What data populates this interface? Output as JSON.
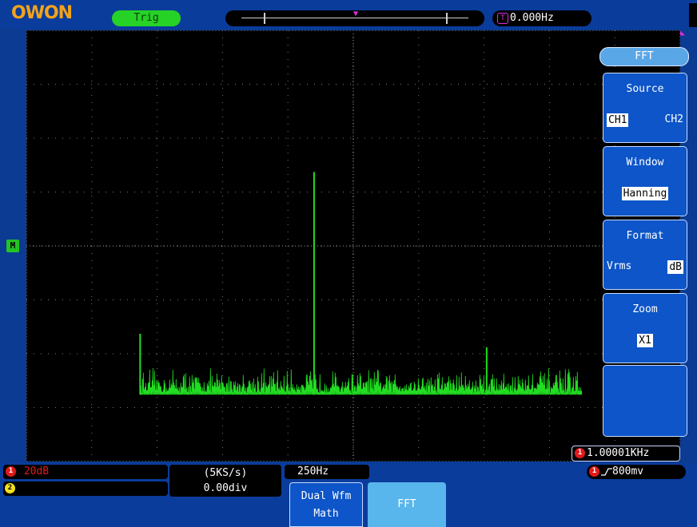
{
  "header": {
    "logo_text": "OWON",
    "trig_label": "Trig",
    "trigger_freq": "0.000Hz"
  },
  "menu": {
    "title": "FFT",
    "items": [
      {
        "label": "Source",
        "options": [
          "CH1",
          "CH2"
        ],
        "selected": "CH1"
      },
      {
        "label": "Window",
        "options": [
          "Hanning"
        ],
        "selected": "Hanning"
      },
      {
        "label": "Format",
        "options": [
          "Vrms",
          "dB"
        ],
        "selected": "dB"
      },
      {
        "label": "Zoom",
        "options": [
          "X1"
        ],
        "selected": "X1"
      }
    ]
  },
  "screen": {
    "math_marker": "M",
    "fft_frequency": "1.00001KHz"
  },
  "bottom": {
    "ch1_scale": "20dB",
    "ch1_num": "1",
    "ch2_num": "2",
    "sample_rate": "(5KS/s)",
    "position": "0.00div",
    "freq_per_div": "250Hz",
    "trigger_level": "800mv",
    "btn_dual_line1": "Dual Wfm",
    "btn_dual_line2": "Math",
    "btn_fft": "FFT"
  },
  "chart_data": {
    "type": "line",
    "x_range": [
      0,
      2500
    ],
    "xunit": "Hz",
    "divisions_x": 10,
    "divisions_y": 8,
    "noise_floor_div": 0.27,
    "noise_amplitude_div": 0.35,
    "trace_start_hz": 435,
    "trace_end_hz": 2125,
    "peaks": [
      {
        "x": 435,
        "level_div": 1.1
      },
      {
        "x": 1100,
        "level_div": 4.1
      },
      {
        "x": 1760,
        "level_div": 0.85
      }
    ],
    "color": "#22dd22",
    "grid": true
  }
}
